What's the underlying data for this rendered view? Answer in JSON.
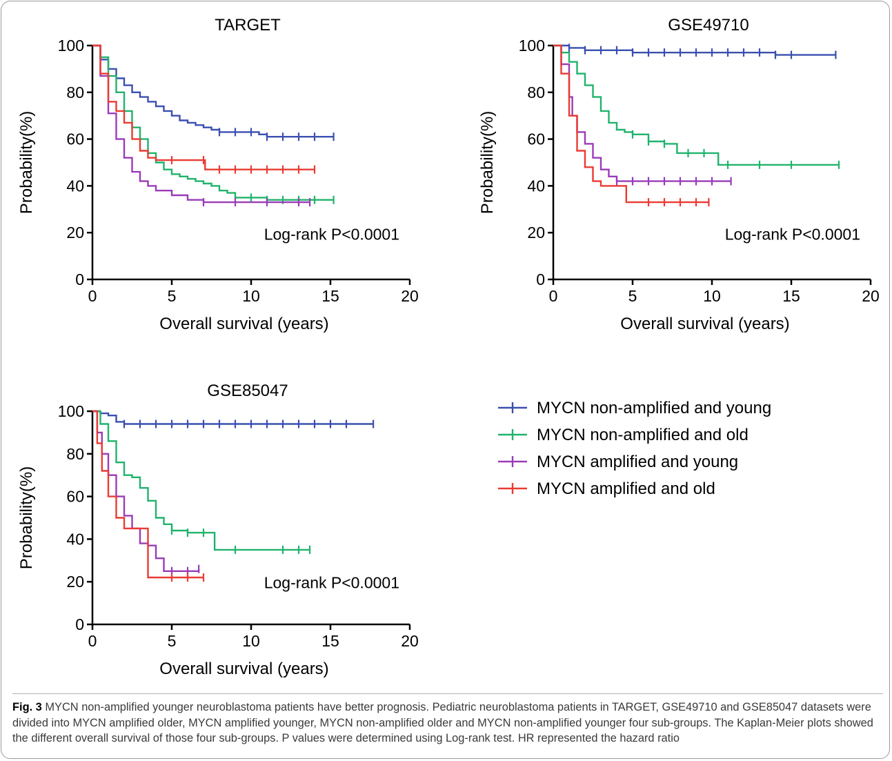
{
  "caption": {
    "label": "Fig. 3",
    "text": "MYCN non-amplified younger neuroblastoma patients have better prognosis. Pediatric neuroblastoma patients in TARGET, GSE49710 and GSE85047 datasets were divided into MYCN amplified older, MYCN amplified younger, MYCN non-amplified older and MYCN non-amplified younger four sub-groups. The Kaplan-Meier plots showed the different overall survival of those four sub-groups. P values were determined using Log-rank test. HR represented the hazard ratio"
  },
  "legend": {
    "items": [
      {
        "label": "MYCN non-amplified and young",
        "color": "#3a4fb0"
      },
      {
        "label": "MYCN non-amplified and old",
        "color": "#1fb36b"
      },
      {
        "label": "MYCN amplified and young",
        "color": "#9a3bb8"
      },
      {
        "label": "MYCN amplified and old",
        "color": "#ea3a32"
      }
    ]
  },
  "chart_data": [
    {
      "type": "line",
      "title": "TARGET",
      "xlabel": "Overall survival (years)",
      "ylabel": "Probability(%)",
      "xlim": [
        0,
        20
      ],
      "ylim": [
        0,
        100
      ],
      "xticks": [
        "0",
        "5",
        "10",
        "15",
        "20"
      ],
      "yticks": [
        "0",
        "20",
        "40",
        "60",
        "80",
        "100"
      ],
      "annotation": "Log-rank P<0.0001",
      "series": [
        {
          "name": "MYCN non-amplified and young",
          "color": "#3a4fb0",
          "x": [
            0,
            0.5,
            1,
            1.5,
            2,
            2.5,
            3,
            3.5,
            4,
            4.5,
            5,
            5.5,
            6,
            6.5,
            7,
            7.5,
            8,
            9,
            10,
            10.5,
            11,
            12,
            13,
            14,
            15.2
          ],
          "y": [
            100,
            94,
            90,
            86,
            83,
            80,
            78,
            76,
            74,
            72,
            70,
            68,
            67,
            66,
            65,
            64,
            63,
            63,
            63,
            62,
            61,
            61,
            61,
            61,
            61
          ],
          "censor_x": [
            8,
            9,
            10,
            11,
            12,
            13,
            14,
            15.2
          ]
        },
        {
          "name": "MYCN non-amplified and old",
          "color": "#1fb36b",
          "x": [
            0,
            0.5,
            1,
            1.5,
            2,
            2.5,
            3,
            3.5,
            4,
            4.5,
            5,
            5.5,
            6,
            6.5,
            7,
            7.5,
            8,
            8.5,
            9,
            10,
            11,
            12,
            13,
            14,
            15.2
          ],
          "y": [
            100,
            95,
            87,
            80,
            72,
            65,
            60,
            54,
            50,
            47,
            45,
            44,
            43,
            42,
            41,
            40,
            38,
            37,
            35,
            35,
            34,
            34,
            34,
            34,
            34
          ],
          "censor_x": [
            10,
            11,
            12,
            13,
            14,
            15.2
          ]
        },
        {
          "name": "MYCN amplified and young",
          "color": "#9a3bb8",
          "x": [
            0,
            0.5,
            1,
            1.5,
            2,
            2.5,
            3,
            3.5,
            4,
            5,
            6,
            7,
            8,
            9,
            10,
            11,
            12,
            13,
            13.7
          ],
          "y": [
            100,
            87,
            71,
            60,
            52,
            46,
            42,
            40,
            38,
            36,
            34,
            33,
            33,
            33,
            33,
            33,
            33,
            33,
            33
          ],
          "censor_x": [
            7,
            9,
            11,
            13,
            13.7
          ]
        },
        {
          "name": "MYCN amplified and old",
          "color": "#ea3a32",
          "x": [
            0,
            0.5,
            1,
            1.5,
            2,
            2.5,
            3,
            3.5,
            4,
            5,
            6,
            7,
            7.1,
            8,
            9,
            10,
            11,
            12,
            13,
            14
          ],
          "y": [
            100,
            88,
            76,
            72,
            67,
            60,
            55,
            52,
            51,
            51,
            51,
            51,
            47,
            47,
            47,
            47,
            47,
            47,
            47,
            47
          ],
          "censor_x": [
            5,
            7,
            8,
            9,
            10,
            11,
            12,
            13,
            14
          ]
        }
      ]
    },
    {
      "type": "line",
      "title": "GSE49710",
      "xlabel": "Overall survival (years)",
      "ylabel": "Probability(%)",
      "xlim": [
        0,
        20
      ],
      "ylim": [
        0,
        100
      ],
      "xticks": [
        "0",
        "5",
        "10",
        "15",
        "20"
      ],
      "yticks": [
        "0",
        "20",
        "40",
        "60",
        "80",
        "100"
      ],
      "annotation": "Log-rank P<0.0001",
      "series": [
        {
          "name": "MYCN non-amplified and young",
          "color": "#3a4fb0",
          "x": [
            0,
            1,
            2,
            3,
            4,
            5,
            6,
            7,
            8,
            9,
            10,
            12,
            14,
            16,
            17.8
          ],
          "y": [
            100,
            99,
            98,
            98,
            98,
            97,
            97,
            97,
            97,
            97,
            97,
            97,
            96,
            96,
            96
          ],
          "censor_x": [
            1,
            2,
            3,
            4,
            5,
            6,
            7,
            8,
            9,
            10,
            11,
            12,
            13,
            14,
            15,
            17.8
          ]
        },
        {
          "name": "MYCN non-amplified and old",
          "color": "#1fb36b",
          "x": [
            0,
            0.5,
            1,
            1.5,
            2,
            2.5,
            3,
            3.5,
            4,
            4.5,
            5,
            6,
            7,
            7.8,
            8.5,
            9.5,
            10.4,
            11,
            13,
            15,
            17,
            18
          ],
          "y": [
            100,
            97,
            93,
            88,
            83,
            78,
            72,
            67,
            64,
            63,
            62,
            59,
            58,
            54,
            54,
            54,
            49,
            49,
            49,
            49,
            49,
            49
          ],
          "censor_x": [
            5,
            6,
            7,
            8.5,
            9.5,
            11,
            13,
            15,
            18
          ]
        },
        {
          "name": "MYCN amplified and young",
          "color": "#9a3bb8",
          "x": [
            0,
            0.5,
            1,
            1.2,
            1.5,
            2,
            2.5,
            3,
            3.5,
            4,
            5,
            6,
            7,
            8,
            9,
            10,
            11.2
          ],
          "y": [
            100,
            92,
            78,
            70,
            63,
            58,
            52,
            47,
            44,
            42,
            42,
            42,
            42,
            42,
            42,
            42,
            42
          ],
          "censor_x": [
            4,
            5,
            6,
            7,
            8,
            9,
            10,
            11.2
          ]
        },
        {
          "name": "MYCN amplified and old",
          "color": "#ea3a32",
          "x": [
            0,
            0.5,
            1,
            1.5,
            2,
            2.5,
            3,
            4,
            4.6,
            5,
            6,
            7,
            8,
            9,
            9.8
          ],
          "y": [
            100,
            88,
            70,
            55,
            48,
            42,
            40,
            40,
            33,
            33,
            33,
            33,
            33,
            33,
            33
          ],
          "censor_x": [
            6,
            7,
            8,
            9,
            9.8
          ]
        }
      ]
    },
    {
      "type": "line",
      "title": "GSE85047",
      "xlabel": "Overall survival (years)",
      "ylabel": "Probability(%)",
      "xlim": [
        0,
        20
      ],
      "ylim": [
        0,
        100
      ],
      "xticks": [
        "0",
        "5",
        "10",
        "15",
        "20"
      ],
      "yticks": [
        "0",
        "20",
        "40",
        "60",
        "80",
        "100"
      ],
      "annotation": "Log-rank P<0.0001",
      "series": [
        {
          "name": "MYCN non-amplified and young",
          "color": "#3a4fb0",
          "x": [
            0,
            0.5,
            1,
            1.5,
            2,
            5,
            10,
            15,
            17.7
          ],
          "y": [
            100,
            99,
            98,
            95,
            94,
            94,
            94,
            94,
            94
          ],
          "censor_x": [
            2,
            3,
            4,
            5,
            6,
            7,
            8,
            9,
            10,
            11,
            12,
            13,
            14,
            15,
            16,
            17.7
          ]
        },
        {
          "name": "MYCN non-amplified and old",
          "color": "#1fb36b",
          "x": [
            0,
            0.5,
            1,
            1.5,
            2,
            2.5,
            3,
            3.5,
            4,
            4.5,
            5,
            6,
            7,
            7.7,
            9,
            11,
            13,
            13.7
          ],
          "y": [
            100,
            94,
            86,
            76,
            70,
            69,
            64,
            58,
            50,
            47,
            44,
            43,
            43,
            35,
            35,
            35,
            35,
            35
          ],
          "censor_x": [
            5,
            6,
            7,
            9,
            12,
            13,
            13.7
          ]
        },
        {
          "name": "MYCN amplified and young",
          "color": "#9a3bb8",
          "x": [
            0,
            0.3,
            0.6,
            1,
            1.5,
            2,
            2.5,
            3,
            3.5,
            4,
            4.5,
            5,
            6,
            6.7
          ],
          "y": [
            100,
            90,
            80,
            70,
            60,
            51,
            45,
            38,
            37,
            31,
            25,
            25,
            25,
            26
          ],
          "censor_x": [
            5,
            6,
            6.7
          ]
        },
        {
          "name": "MYCN amplified and old",
          "color": "#ea3a32",
          "x": [
            0,
            0.3,
            0.6,
            1,
            1.5,
            2,
            2.5,
            3,
            3.5,
            4,
            5,
            6,
            7
          ],
          "y": [
            100,
            85,
            72,
            60,
            50,
            45,
            45,
            45,
            22,
            22,
            22,
            22,
            22
          ],
          "censor_x": [
            5,
            6,
            7
          ]
        }
      ]
    }
  ]
}
